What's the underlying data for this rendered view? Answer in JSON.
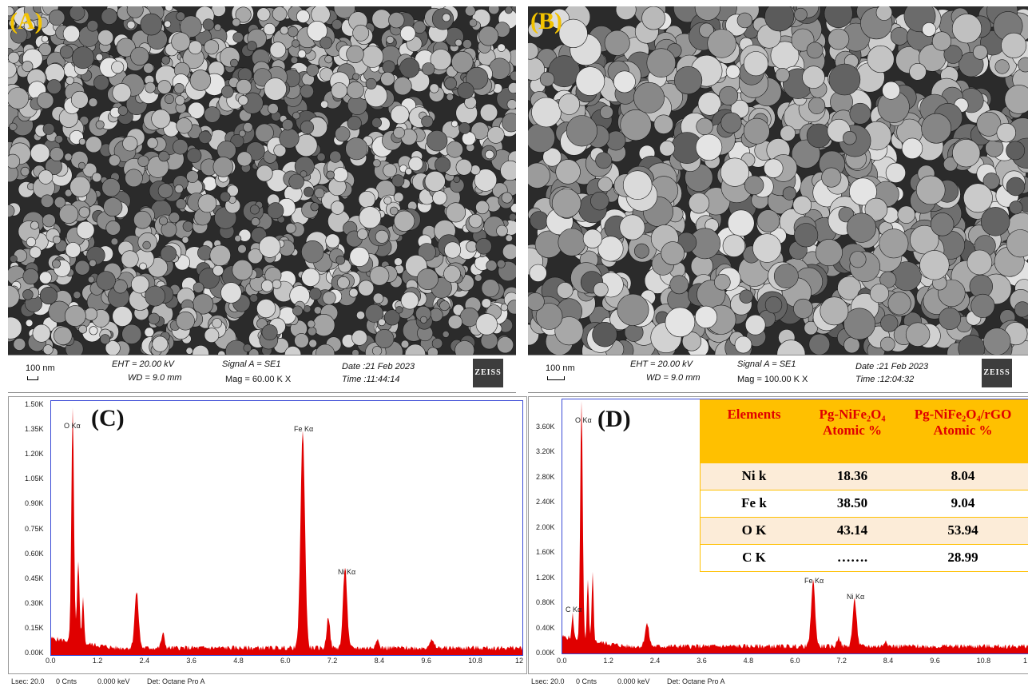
{
  "panels": {
    "A": {
      "letter": "(A)",
      "scale_label": "100 nm",
      "eht": "EHT = 20.00 kV",
      "wd": "WD =  9.0 mm",
      "signal": "Signal A = SE1",
      "mag": "Mag =   60.00 K X",
      "date": "Date :21 Feb 2023",
      "time": "Time :11:44:14",
      "logo": "ZEISS"
    },
    "B": {
      "letter": "(B)",
      "scale_label": "100 nm",
      "eht": "EHT = 20.00 kV",
      "wd": "WD =  9.0 mm",
      "signal": "Signal A = SE1",
      "mag": "Mag =  100.00 K X",
      "date": "Date :21 Feb 2023",
      "time": "Time :12:04:32",
      "logo": "ZEISS"
    },
    "C": {
      "letter": "(C)",
      "yticks": [
        "1.50K",
        "1.35K",
        "1.20K",
        "1.05K",
        "0.90K",
        "0.75K",
        "0.60K",
        "0.45K",
        "0.30K",
        "0.15K",
        "0.00K"
      ],
      "xticks": [
        "0.0",
        "1.2",
        "2.4",
        "3.6",
        "4.8",
        "6.0",
        "7.2",
        "8.4",
        "9.6",
        "10.8",
        "12"
      ],
      "peak_labels": [
        "O  Kα",
        "Fe Kα",
        "Ni Kα"
      ],
      "footer": [
        "Lsec: 20.0",
        "0 Cnts",
        "0.000 keV",
        "Det: Octane Pro A"
      ]
    },
    "D": {
      "letter": "(D)",
      "yticks": [
        "3.60K",
        "3.20K",
        "2.80K",
        "2.40K",
        "2.00K",
        "1.60K",
        "1.20K",
        "0.80K",
        "0.40K",
        "0.00K"
      ],
      "xticks": [
        "0.0",
        "1.2",
        "2.4",
        "3.6",
        "4.8",
        "6.0",
        "7.2",
        "8.4",
        "9.6",
        "10.8",
        "1"
      ],
      "peak_labels": [
        "O  Kα",
        "C  Kα",
        "Fe Kα",
        "Ni Kα"
      ],
      "footer": [
        "Lsec: 20.0",
        "0 Cnts",
        "0.000 keV",
        "Det: Octane Pro A"
      ],
      "table": {
        "headers": [
          "Elements",
          "Pg-NiFe₂O₄ Atomic %",
          "Pg-NiFe₂O₄/rGO Atomic %"
        ],
        "rows": [
          [
            "Ni k",
            "18.36",
            "8.04"
          ],
          [
            "Fe k",
            "38.50",
            "9.04"
          ],
          [
            "O K",
            "43.14",
            "53.94"
          ],
          [
            "C K",
            "…….",
            "28.99"
          ]
        ]
      }
    }
  },
  "colors": {
    "spectrum": "#e00000",
    "plot_border": "#3b4bd6",
    "panel_letter": "#f2c200",
    "table_header": "#ffc000",
    "header_text": "#e00000"
  }
}
